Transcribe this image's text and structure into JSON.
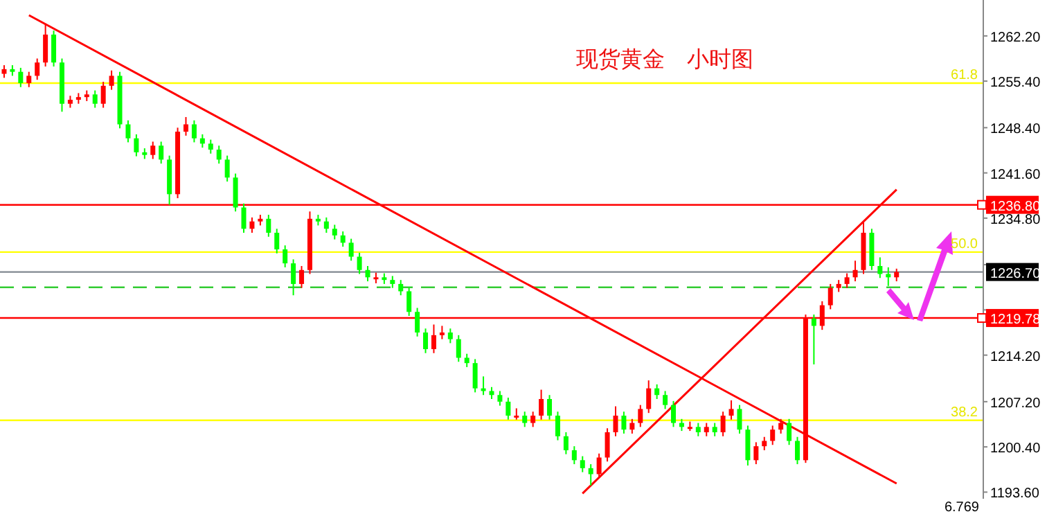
{
  "chart_data": {
    "type": "candlestick",
    "title": "现货黄金　小时图",
    "categories": [
      null,
      null,
      null,
      null,
      null,
      null,
      null,
      null,
      null,
      null,
      null,
      null,
      null,
      null,
      null,
      null,
      null,
      null,
      null,
      null,
      null,
      null,
      null,
      null,
      null,
      null,
      null,
      null,
      null,
      null,
      null,
      null,
      null,
      null,
      null,
      null,
      null,
      null,
      null,
      null,
      null,
      null,
      null,
      null,
      null,
      null,
      null,
      null,
      null,
      null,
      null,
      null,
      null,
      null,
      null,
      null,
      null,
      null,
      null,
      null,
      null,
      null,
      null,
      null,
      null,
      null,
      null,
      null,
      null,
      null,
      null,
      null,
      null,
      null,
      null,
      null,
      null,
      null,
      null,
      null,
      null,
      null,
      null,
      null,
      null,
      null,
      null,
      null,
      null,
      null,
      null,
      null,
      null,
      null,
      null,
      null,
      null,
      null,
      null,
      null,
      null,
      null,
      null,
      null,
      null,
      null,
      null,
      null,
      null,
      null,
      null,
      null,
      null,
      null,
      null,
      null,
      null,
      null,
      null
    ],
    "ohlc": [
      [
        1256.5,
        1257.8,
        1255.9,
        1257.2
      ],
      [
        1257.2,
        1257.8,
        1256.2,
        1256.8
      ],
      [
        1256.8,
        1257.4,
        1254.5,
        1255.1
      ],
      [
        1255.1,
        1256.8,
        1254.5,
        1256.2
      ],
      [
        1256.2,
        1258.8,
        1255.6,
        1258.2
      ],
      [
        1258.2,
        1263.9,
        1257.6,
        1262.4
      ],
      [
        1262.4,
        1263.0,
        1257.6,
        1258.2
      ],
      [
        1258.2,
        1258.8,
        1250.8,
        1252.0
      ],
      [
        1252.0,
        1253.2,
        1251.4,
        1252.6
      ],
      [
        1252.6,
        1253.6,
        1252.0,
        1253.0
      ],
      [
        1253.0,
        1254.0,
        1252.4,
        1253.4
      ],
      [
        1253.4,
        1254.0,
        1251.4,
        1252.0
      ],
      [
        1252.0,
        1255.3,
        1251.4,
        1254.7
      ],
      [
        1254.7,
        1257.0,
        1254.1,
        1256.2
      ],
      [
        1256.2,
        1256.8,
        1248.3,
        1248.9
      ],
      [
        1248.9,
        1249.5,
        1246.2,
        1246.8
      ],
      [
        1246.8,
        1247.4,
        1244.1,
        1244.7
      ],
      [
        1244.7,
        1245.3,
        1243.7,
        1244.3
      ],
      [
        1244.3,
        1246.3,
        1243.7,
        1245.7
      ],
      [
        1245.7,
        1246.3,
        1243.0,
        1243.6
      ],
      [
        1243.6,
        1244.2,
        1236.8,
        1238.4
      ],
      [
        1238.4,
        1248.4,
        1237.8,
        1247.8
      ],
      [
        1247.8,
        1250.0,
        1247.2,
        1248.9
      ],
      [
        1248.9,
        1249.5,
        1246.2,
        1246.8
      ],
      [
        1246.8,
        1247.4,
        1245.4,
        1246.0
      ],
      [
        1246.0,
        1246.6,
        1244.5,
        1245.1
      ],
      [
        1245.1,
        1245.7,
        1243.0,
        1243.6
      ],
      [
        1243.6,
        1244.2,
        1240.3,
        1240.9
      ],
      [
        1240.9,
        1241.5,
        1235.8,
        1236.4
      ],
      [
        1236.4,
        1237.0,
        1232.6,
        1233.2
      ],
      [
        1233.2,
        1234.9,
        1232.6,
        1234.3
      ],
      [
        1234.3,
        1235.3,
        1233.7,
        1234.7
      ],
      [
        1234.7,
        1235.3,
        1232.0,
        1232.6
      ],
      [
        1232.6,
        1233.2,
        1229.5,
        1230.1
      ],
      [
        1230.1,
        1230.7,
        1227.4,
        1228.0
      ],
      [
        1228.0,
        1228.6,
        1223.2,
        1224.9
      ],
      [
        1224.9,
        1227.6,
        1224.3,
        1227.0
      ],
      [
        1227.0,
        1235.8,
        1226.4,
        1234.7
      ],
      [
        1234.7,
        1235.3,
        1233.7,
        1234.3
      ],
      [
        1234.3,
        1234.9,
        1232.6,
        1233.2
      ],
      [
        1233.2,
        1233.8,
        1231.6,
        1232.2
      ],
      [
        1232.2,
        1232.8,
        1230.5,
        1231.1
      ],
      [
        1231.1,
        1231.7,
        1228.4,
        1229.0
      ],
      [
        1229.0,
        1229.6,
        1226.4,
        1227.0
      ],
      [
        1227.0,
        1227.6,
        1225.3,
        1225.9
      ],
      [
        1225.6,
        1226.6,
        1225.0,
        1225.9
      ],
      [
        1225.9,
        1226.5,
        1224.9,
        1225.5
      ],
      [
        1225.5,
        1226.1,
        1224.3,
        1224.9
      ],
      [
        1224.9,
        1225.5,
        1223.2,
        1223.8
      ],
      [
        1223.8,
        1224.4,
        1220.1,
        1220.7
      ],
      [
        1220.7,
        1221.3,
        1217.0,
        1217.6
      ],
      [
        1217.6,
        1218.2,
        1214.5,
        1215.1
      ],
      [
        1215.1,
        1218.8,
        1214.5,
        1217.2
      ],
      [
        1217.2,
        1218.6,
        1216.6,
        1217.6
      ],
      [
        1217.6,
        1218.2,
        1216.0,
        1216.6
      ],
      [
        1216.6,
        1217.2,
        1213.2,
        1213.8
      ],
      [
        1213.8,
        1214.4,
        1212.4,
        1213.0
      ],
      [
        1213.0,
        1213.6,
        1208.6,
        1209.2
      ],
      [
        1209.2,
        1211.0,
        1208.2,
        1208.8
      ],
      [
        1208.8,
        1209.4,
        1207.6,
        1208.2
      ],
      [
        1208.2,
        1208.8,
        1206.6,
        1207.2
      ],
      [
        1207.2,
        1207.8,
        1204.5,
        1205.1
      ],
      [
        1204.8,
        1206.2,
        1204.5,
        1205.1
      ],
      [
        1205.1,
        1205.7,
        1203.4,
        1204.0
      ],
      [
        1204.0,
        1205.7,
        1203.4,
        1205.1
      ],
      [
        1205.1,
        1209.0,
        1204.5,
        1207.6
      ],
      [
        1207.6,
        1208.2,
        1204.5,
        1205.1
      ],
      [
        1205.1,
        1205.7,
        1201.4,
        1202.0
      ],
      [
        1202.0,
        1202.6,
        1199.3,
        1199.9
      ],
      [
        1199.9,
        1200.5,
        1197.8,
        1198.4
      ],
      [
        1198.4,
        1199.0,
        1196.6,
        1197.2
      ],
      [
        1197.2,
        1197.8,
        1194.6,
        1196.3
      ],
      [
        1196.3,
        1199.4,
        1195.7,
        1198.8
      ],
      [
        1198.8,
        1203.2,
        1198.2,
        1202.6
      ],
      [
        1202.6,
        1206.5,
        1202.0,
        1205.1
      ],
      [
        1205.1,
        1205.7,
        1202.4,
        1203.0
      ],
      [
        1203.0,
        1204.6,
        1202.4,
        1204.0
      ],
      [
        1204.0,
        1206.7,
        1203.4,
        1206.1
      ],
      [
        1206.1,
        1210.4,
        1205.5,
        1209.2
      ],
      [
        1209.2,
        1209.8,
        1207.6,
        1208.2
      ],
      [
        1208.2,
        1208.8,
        1206.1,
        1206.7
      ],
      [
        1206.7,
        1207.3,
        1203.4,
        1204.0
      ],
      [
        1204.0,
        1204.6,
        1202.8,
        1203.4
      ],
      [
        1203.1,
        1204.2,
        1202.8,
        1203.4
      ],
      [
        1203.4,
        1204.0,
        1202.0,
        1202.6
      ],
      [
        1202.6,
        1204.0,
        1202.0,
        1203.4
      ],
      [
        1203.4,
        1204.0,
        1202.0,
        1202.6
      ],
      [
        1202.6,
        1205.7,
        1202.0,
        1205.1
      ],
      [
        1205.1,
        1207.4,
        1204.5,
        1206.1
      ],
      [
        1206.1,
        1206.7,
        1202.4,
        1203.0
      ],
      [
        1203.0,
        1203.6,
        1197.6,
        1198.4
      ],
      [
        1198.4,
        1201.1,
        1197.8,
        1200.5
      ],
      [
        1200.5,
        1201.9,
        1199.9,
        1201.3
      ],
      [
        1201.3,
        1203.6,
        1200.7,
        1203.0
      ],
      [
        1203.0,
        1204.6,
        1202.4,
        1204.0
      ],
      [
        1204.0,
        1204.6,
        1200.7,
        1201.3
      ],
      [
        1201.3,
        1201.9,
        1197.8,
        1198.4
      ],
      [
        1198.4,
        1220.3,
        1198.0,
        1219.7
      ],
      [
        1219.7,
        1220.3,
        1212.8,
        1218.6
      ],
      [
        1218.6,
        1222.3,
        1218.0,
        1221.7
      ],
      [
        1221.7,
        1224.9,
        1221.1,
        1224.3
      ],
      [
        1224.3,
        1225.5,
        1223.7,
        1224.9
      ],
      [
        1224.9,
        1226.5,
        1224.3,
        1225.9
      ],
      [
        1225.9,
        1228.4,
        1225.3,
        1227.0
      ],
      [
        1227.0,
        1234.3,
        1226.4,
        1232.6
      ],
      [
        1232.6,
        1233.2,
        1227.0,
        1227.6
      ],
      [
        1227.6,
        1228.9,
        1225.8,
        1226.4
      ],
      [
        1226.4,
        1227.4,
        1224.6,
        1225.9
      ],
      [
        1225.9,
        1227.2,
        1225.3,
        1226.7
      ],
      null,
      null,
      null,
      null,
      null,
      null,
      null,
      null,
      null,
      null
    ],
    "colors": [
      "#ff0000",
      "#00ff00",
      "#00ff00",
      "#ff0000",
      "#ff0000",
      "#ff0000",
      "#00ff00",
      "#00ff00",
      "#ff0000",
      "#ff0000",
      "#ff0000",
      "#00ff00",
      "#ff0000",
      "#ff0000",
      "#00ff00",
      "#00ff00",
      "#00ff00",
      "#00ff00",
      "#ff0000",
      "#00ff00",
      "#00ff00",
      "#ff0000",
      "#ff0000",
      "#00ff00",
      "#00ff00",
      "#00ff00",
      "#00ff00",
      "#00ff00",
      "#00ff00",
      "#00ff00",
      "#ff0000",
      "#ff0000",
      "#00ff00",
      "#00ff00",
      "#00ff00",
      "#00ff00",
      "#ff0000",
      "#ff0000",
      "#00ff00",
      "#00ff00",
      "#00ff00",
      "#00ff00",
      "#00ff00",
      "#00ff00",
      "#00ff00",
      "#ff0000",
      "#00ff00",
      "#00ff00",
      "#00ff00",
      "#00ff00",
      "#00ff00",
      "#00ff00",
      "#ff0000",
      "#ff0000",
      "#00ff00",
      "#00ff00",
      "#00ff00",
      "#00ff00",
      "#00ff00",
      "#00ff00",
      "#00ff00",
      "#00ff00",
      "#ff0000",
      "#00ff00",
      "#ff0000",
      "#ff0000",
      "#00ff00",
      "#00ff00",
      "#00ff00",
      "#00ff00",
      "#00ff00",
      "#00ff00",
      "#ff0000",
      "#ff0000",
      "#ff0000",
      "#00ff00",
      "#ff0000",
      "#ff0000",
      "#ff0000",
      "#00ff00",
      "#00ff00",
      "#00ff00",
      "#00ff00",
      "#ff0000",
      "#00ff00",
      "#ff0000",
      "#00ff00",
      "#ff0000",
      "#ff0000",
      "#00ff00",
      "#00ff00",
      "#ff0000",
      "#ff0000",
      "#ff0000",
      "#ff0000",
      "#00ff00",
      "#00ff00",
      "#ff0000",
      "#00ff00",
      "#ff0000",
      "#ff0000",
      "#ff0000",
      "#ff0000",
      "#ff0000",
      "#ff0000",
      "#00ff00",
      "#00ff00",
      "#00ff00",
      "#ff0000",
      null,
      null,
      null,
      null,
      null,
      null,
      null,
      null,
      null,
      null
    ],
    "series": [
      {
        "type": "line",
        "color": "#ff0000",
        "values": [
          null,
          null,
          null,
          1265.3,
          null,
          null,
          null,
          null,
          null,
          null,
          null,
          null,
          null,
          null,
          null,
          null,
          null,
          null,
          null,
          null,
          null,
          null,
          null,
          null,
          null,
          null,
          null,
          null,
          null,
          null,
          null,
          null,
          null,
          null,
          null,
          null,
          null,
          null,
          null,
          null,
          null,
          null,
          null,
          null,
          null,
          null,
          null,
          null,
          null,
          null,
          null,
          null,
          null,
          null,
          null,
          null,
          null,
          null,
          null,
          null,
          null,
          null,
          null,
          null,
          null,
          null,
          null,
          null,
          null,
          null,
          null,
          null,
          null,
          null,
          null,
          null,
          null,
          null,
          null,
          null,
          null,
          null,
          null,
          null,
          null,
          null,
          null,
          null,
          null,
          null,
          null,
          null,
          null,
          null,
          null,
          null,
          null,
          null,
          null,
          null,
          null,
          null,
          null,
          null,
          null,
          null,
          null,
          null,
          1194.9,
          null,
          null,
          null,
          null,
          null,
          null,
          null,
          null,
          null,
          null
        ]
      },
      {
        "type": "line",
        "color": "#ff0000",
        "values": [
          null,
          null,
          null,
          null,
          null,
          null,
          null,
          null,
          null,
          null,
          null,
          null,
          null,
          null,
          null,
          null,
          null,
          null,
          null,
          null,
          null,
          null,
          null,
          null,
          null,
          null,
          null,
          null,
          null,
          null,
          null,
          null,
          null,
          null,
          null,
          null,
          null,
          null,
          null,
          null,
          null,
          null,
          null,
          null,
          null,
          null,
          null,
          null,
          null,
          null,
          null,
          null,
          null,
          null,
          null,
          null,
          null,
          null,
          null,
          null,
          null,
          null,
          null,
          null,
          null,
          null,
          null,
          null,
          null,
          null,
          1193.4,
          null,
          null,
          null,
          null,
          null,
          null,
          null,
          null,
          null,
          null,
          null,
          null,
          null,
          null,
          null,
          null,
          null,
          null,
          null,
          null,
          null,
          null,
          null,
          null,
          null,
          null,
          null,
          null,
          null,
          null,
          null,
          null,
          null,
          null,
          null,
          null,
          null,
          1239.1,
          null,
          null,
          null,
          null,
          null,
          null,
          null,
          null,
          null,
          null
        ]
      }
    ],
    "ylim": [
      1192.6,
      1267.6
    ],
    "yticks": [
      {
        "value": 1262.2,
        "label": "1262.20"
      },
      {
        "value": 1255.4,
        "label": "1255.40"
      },
      {
        "value": 1248.4,
        "label": "1248.40"
      },
      {
        "value": 1241.6,
        "label": "1241.60"
      },
      {
        "value": 1234.8,
        "label": "1234.80"
      },
      {
        "value": 1227.8,
        "label": null
      },
      {
        "value": 1221.0,
        "label": null
      },
      {
        "value": 1214.2,
        "label": "1214.20"
      },
      {
        "value": 1207.2,
        "label": "1207.20"
      },
      {
        "value": 1200.4,
        "label": "1200.40"
      },
      {
        "value": 1193.6,
        "label": "1193.60"
      }
    ],
    "tick_labels": "y",
    "ref_lines": [
      {
        "axis": "y",
        "value": 1236.8,
        "label": "1236.80",
        "color": "#ff0000",
        "line_style": "solid"
      },
      {
        "axis": "y",
        "value": 1219.78,
        "label": "1219.78",
        "color": "#ff0000",
        "line_style": "solid"
      },
      {
        "axis": "y",
        "value": 1226.7,
        "label": "1226.70",
        "color": "#808890",
        "line_style": "solid"
      },
      {
        "axis": "y",
        "value": 1224.4,
        "color": "#33cc33",
        "line_style": "dashed"
      },
      {
        "axis": "y",
        "value": 1255.1,
        "color": "#ffff00",
        "line_style": "solid"
      },
      {
        "axis": "y",
        "value": 1229.7,
        "color": "#ffff00",
        "line_style": "solid"
      },
      {
        "axis": "y",
        "value": 1204.4,
        "color": "#ffff00",
        "line_style": "solid"
      }
    ],
    "annotations": [
      "6.769",
      {
        "text": "61.8",
        "y": 1255.1
      },
      {
        "text": "50.0",
        "y": 1229.7
      },
      {
        "text": "38.2",
        "y": 1204.4
      }
    ],
    "grid": false
  }
}
